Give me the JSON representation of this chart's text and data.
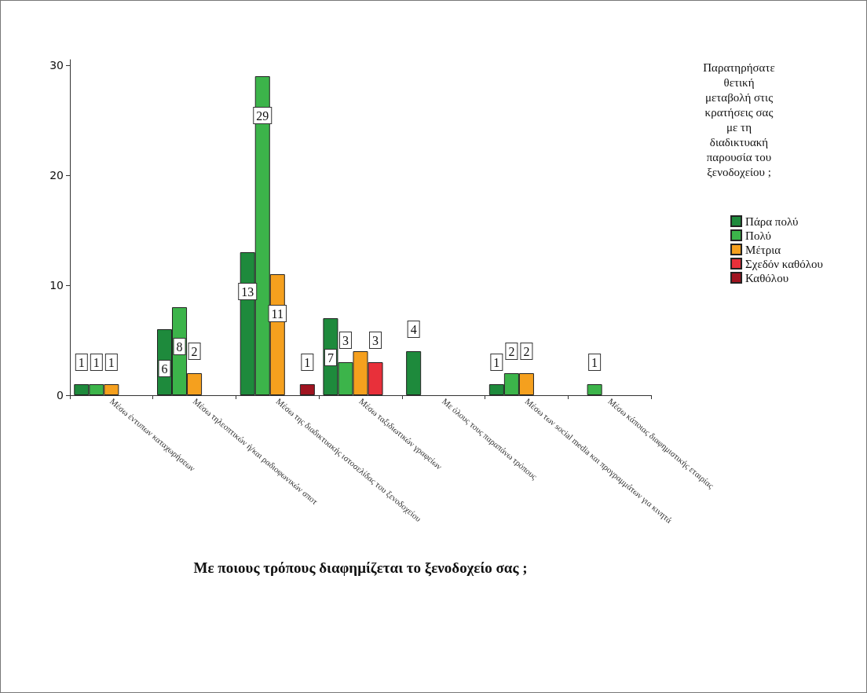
{
  "chart_data": {
    "type": "bar",
    "xlabel": "Με ποιους τρόπους διαφημίζεται το ξενοδοχείο σας ;",
    "legend_title": "Παρατηρήσατε\nθετική\nμεταβολή στις\nκρατήσεις σας\nμε τη\nδιαδικτυακή\nπαρουσία του\nξενοδοχείου ;",
    "categories": [
      "Μέσω έντυπων καταχωρήσεων",
      "Μέσω τηλεοπτικών ή/και ραδιοφωνικών σποτ",
      "Μέσω της διαδικτυακής ιστοσελίδας του ξενοδοχείου",
      "Μέσω ταξιδιωτικών γραφείων",
      "Με όλους τους παραπάνω τρόπους",
      "Μέσω των social media και προγραμμάτων για κινητά",
      "Μέσω κάποιας διαφημιστικής εταιρίας"
    ],
    "series": [
      {
        "name": "Πάρα πολύ",
        "color": "#1e8a3c",
        "values": [
          1,
          6,
          13,
          7,
          4,
          1,
          null
        ],
        "value_labels": [
          "1",
          "6",
          "13",
          "7",
          "4",
          "1",
          null
        ]
      },
      {
        "name": "Πολύ",
        "color": "#3cb44a",
        "values": [
          1,
          8,
          29,
          3,
          null,
          2,
          1
        ],
        "value_labels": [
          "1",
          "8",
          "29",
          "3",
          null,
          "2",
          "1"
        ]
      },
      {
        "name": "Μέτρια",
        "color": "#f5a01e",
        "values": [
          1,
          2,
          11,
          4,
          null,
          2,
          null
        ],
        "value_labels": [
          "1",
          "2",
          "11",
          null,
          null,
          "2",
          null
        ]
      },
      {
        "name": "Σχεδόν καθόλου",
        "color": "#e8303a",
        "values": [
          null,
          null,
          null,
          3,
          null,
          null,
          null
        ],
        "value_labels": [
          null,
          null,
          null,
          "3",
          null,
          null,
          null
        ]
      },
      {
        "name": "Καθόλου",
        "color": "#a01420",
        "values": [
          null,
          null,
          1,
          null,
          null,
          null,
          null
        ],
        "value_labels": [
          null,
          null,
          "1",
          null,
          null,
          null,
          null
        ]
      }
    ],
    "ylim": [
      0,
      30.5
    ],
    "yticks": [
      0,
      10,
      20,
      30
    ],
    "grid": false,
    "legend": "right"
  }
}
